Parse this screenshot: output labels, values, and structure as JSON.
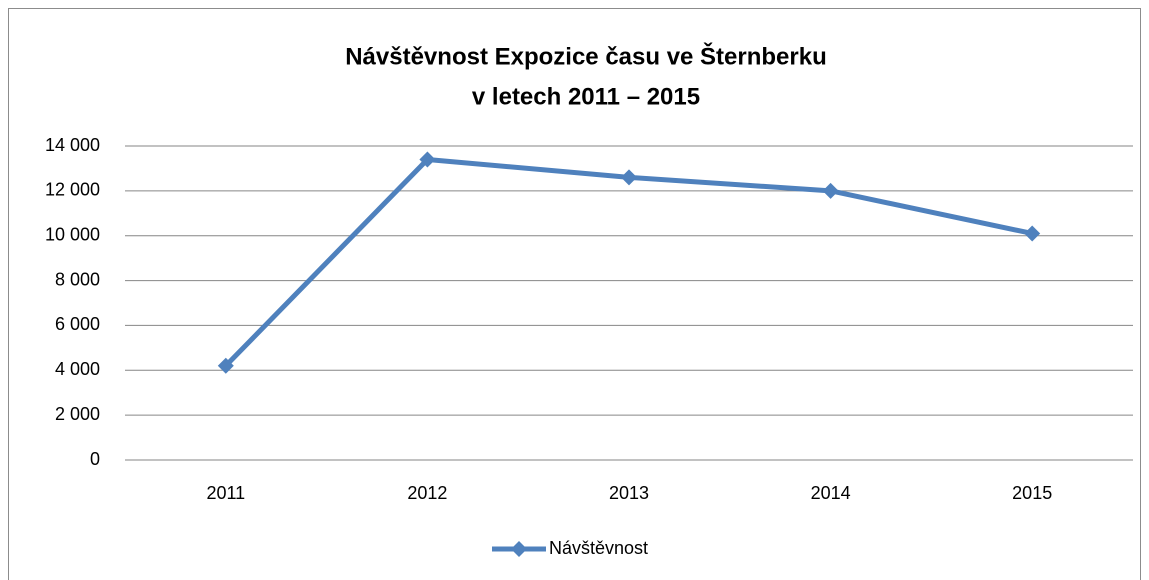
{
  "chart_data": {
    "type": "line",
    "title": [
      "Návštěvnost Expozice času ve Šternberku",
      "v letech 2011 – 2015"
    ],
    "categories": [
      "2011",
      "2012",
      "2013",
      "2014",
      "2015"
    ],
    "series": [
      {
        "name": "Návštěvnost",
        "color": "#4f81bd",
        "values": [
          4200,
          13400,
          12600,
          12000,
          10100
        ]
      }
    ],
    "ylim": [
      0,
      14000
    ],
    "yticks": [
      0,
      {
        "value": 2000,
        "label": "2 000"
      },
      {
        "value": 4000,
        "label": "4 000"
      },
      {
        "value": 6000,
        "label": "6 000"
      },
      {
        "value": 8000,
        "label": "8 000"
      },
      {
        "value": 10000,
        "label": "10 000"
      },
      {
        "value": 12000,
        "label": "12 000"
      },
      {
        "value": 14000,
        "label": "14 000"
      }
    ],
    "grid": true,
    "legend": "bottom"
  }
}
